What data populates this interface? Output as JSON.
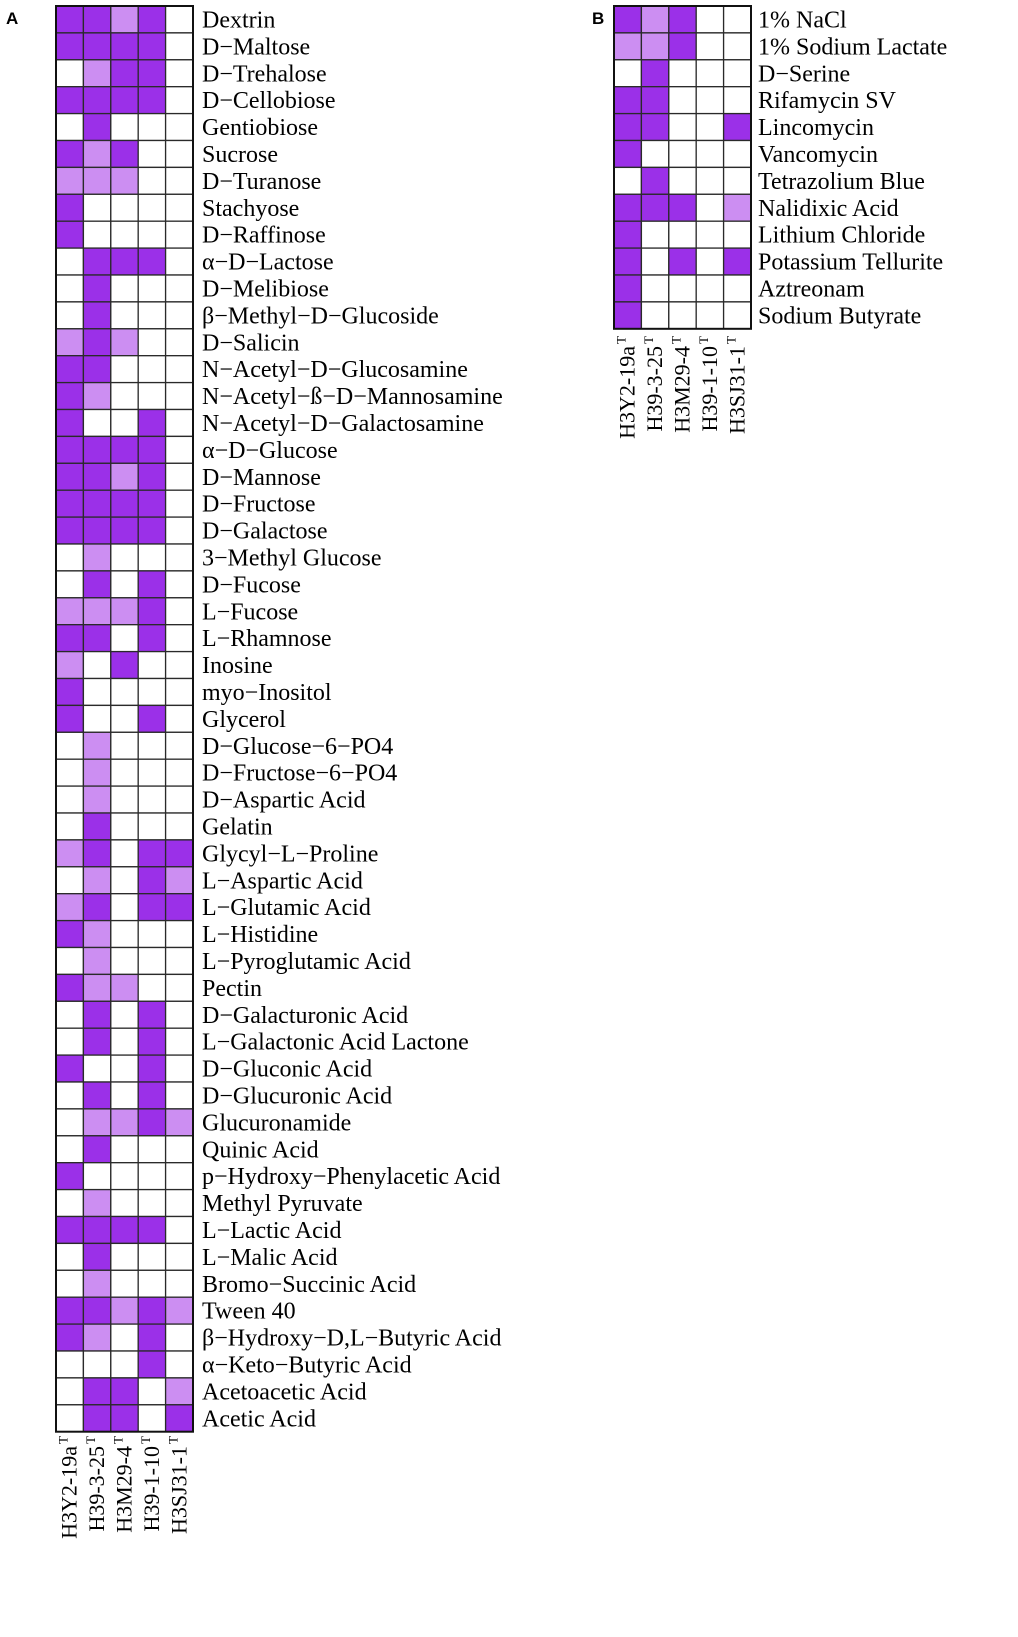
{
  "chart_data": [
    {
      "type": "heatmap",
      "panel_label": "A",
      "colors": {
        "0": "#ffffff",
        "1": "#cc8ef2",
        "2": "#9b30e8"
      },
      "columns": [
        {
          "label": "H3Y2-19a",
          "sup": "T"
        },
        {
          "label": "H39-3-25",
          "sup": "T"
        },
        {
          "label": "H3M29-4",
          "sup": "T"
        },
        {
          "label": "H39-1-10",
          "sup": "T"
        },
        {
          "label": "H3SJ31-1",
          "sup": "T"
        }
      ],
      "rows": [
        "Dextrin",
        "D−Maltose",
        "D−Trehalose",
        "D−Cellobiose",
        "Gentiobiose",
        "Sucrose",
        "D−Turanose",
        "Stachyose",
        "D−Raffinose",
        "α−D−Lactose",
        "D−Melibiose",
        "β−Methyl−D−Glucoside",
        "D−Salicin",
        "N−Acetyl−D−Glucosamine",
        "N−Acetyl−ß−D−Mannosamine",
        "N−Acetyl−D−Galactosamine",
        "α−D−Glucose",
        "D−Mannose",
        "D−Fructose",
        "D−Galactose",
        "3−Methyl Glucose",
        "D−Fucose",
        "L−Fucose",
        "L−Rhamnose",
        "Inosine",
        "myo−Inositol",
        "Glycerol",
        "D−Glucose−6−PO4",
        "D−Fructose−6−PO4",
        "D−Aspartic Acid",
        "Gelatin",
        "Glycyl−L−Proline",
        "L−Aspartic Acid",
        "L−Glutamic Acid",
        "L−Histidine",
        "L−Pyroglutamic Acid",
        "Pectin",
        "D−Galacturonic Acid",
        "L−Galactonic Acid Lactone",
        "D−Gluconic Acid",
        "D−Glucuronic Acid",
        "Glucuronamide",
        "Quinic Acid",
        "p−Hydroxy−Phenylacetic Acid",
        "Methyl Pyruvate",
        "L−Lactic Acid",
        "L−Malic Acid",
        "Bromo−Succinic Acid",
        "Tween 40",
        "β−Hydroxy−D,L−Butyric Acid",
        "α−Keto−Butyric Acid",
        "Acetoacetic Acid",
        "Acetic Acid"
      ],
      "values": [
        [
          2,
          2,
          1,
          2,
          0
        ],
        [
          2,
          2,
          2,
          2,
          0
        ],
        [
          0,
          1,
          2,
          2,
          0
        ],
        [
          2,
          2,
          2,
          2,
          0
        ],
        [
          0,
          2,
          0,
          0,
          0
        ],
        [
          2,
          1,
          2,
          0,
          0
        ],
        [
          1,
          1,
          1,
          0,
          0
        ],
        [
          2,
          0,
          0,
          0,
          0
        ],
        [
          2,
          0,
          0,
          0,
          0
        ],
        [
          0,
          2,
          2,
          2,
          0
        ],
        [
          0,
          2,
          0,
          0,
          0
        ],
        [
          0,
          2,
          0,
          0,
          0
        ],
        [
          1,
          2,
          1,
          0,
          0
        ],
        [
          2,
          2,
          0,
          0,
          0
        ],
        [
          2,
          1,
          0,
          0,
          0
        ],
        [
          2,
          0,
          0,
          2,
          0
        ],
        [
          2,
          2,
          2,
          2,
          0
        ],
        [
          2,
          2,
          1,
          2,
          0
        ],
        [
          2,
          2,
          2,
          2,
          0
        ],
        [
          2,
          2,
          2,
          2,
          0
        ],
        [
          0,
          1,
          0,
          0,
          0
        ],
        [
          0,
          2,
          0,
          2,
          0
        ],
        [
          1,
          1,
          1,
          2,
          0
        ],
        [
          2,
          2,
          0,
          2,
          0
        ],
        [
          1,
          0,
          2,
          0,
          0
        ],
        [
          2,
          0,
          0,
          0,
          0
        ],
        [
          2,
          0,
          0,
          2,
          0
        ],
        [
          0,
          1,
          0,
          0,
          0
        ],
        [
          0,
          1,
          0,
          0,
          0
        ],
        [
          0,
          1,
          0,
          0,
          0
        ],
        [
          0,
          2,
          0,
          0,
          0
        ],
        [
          1,
          2,
          0,
          2,
          2
        ],
        [
          0,
          1,
          0,
          2,
          1
        ],
        [
          1,
          2,
          0,
          2,
          2
        ],
        [
          2,
          1,
          0,
          0,
          0
        ],
        [
          0,
          1,
          0,
          0,
          0
        ],
        [
          2,
          1,
          1,
          0,
          0
        ],
        [
          0,
          2,
          0,
          2,
          0
        ],
        [
          0,
          2,
          0,
          2,
          0
        ],
        [
          2,
          0,
          0,
          2,
          0
        ],
        [
          0,
          2,
          0,
          2,
          0
        ],
        [
          0,
          1,
          1,
          2,
          1
        ],
        [
          0,
          2,
          0,
          0,
          0
        ],
        [
          2,
          0,
          0,
          0,
          0
        ],
        [
          0,
          1,
          0,
          0,
          0
        ],
        [
          2,
          2,
          2,
          2,
          0
        ],
        [
          0,
          2,
          0,
          0,
          0
        ],
        [
          0,
          1,
          0,
          0,
          0
        ],
        [
          2,
          2,
          1,
          2,
          1
        ],
        [
          2,
          1,
          0,
          2,
          0
        ],
        [
          0,
          0,
          0,
          2,
          0
        ],
        [
          0,
          2,
          2,
          0,
          1
        ],
        [
          0,
          2,
          2,
          0,
          2
        ]
      ]
    },
    {
      "type": "heatmap",
      "panel_label": "B",
      "colors": {
        "0": "#ffffff",
        "1": "#cc8ef2",
        "2": "#9b30e8"
      },
      "columns": [
        {
          "label": "H3Y2-19a",
          "sup": "T"
        },
        {
          "label": "H39-3-25",
          "sup": "T"
        },
        {
          "label": "H3M29-4",
          "sup": "T"
        },
        {
          "label": "H39-1-10",
          "sup": "T"
        },
        {
          "label": "H3SJ31-1",
          "sup": "T"
        }
      ],
      "rows": [
        "1% NaCl",
        "1% Sodium Lactate",
        "D−Serine",
        "Rifamycin SV",
        "Lincomycin",
        "Vancomycin",
        "Tetrazolium Blue",
        "Nalidixic Acid",
        "Lithium Chloride",
        "Potassium Tellurite",
        "Aztreonam",
        "Sodium Butyrate"
      ],
      "values": [
        [
          2,
          1,
          2,
          0,
          0
        ],
        [
          1,
          1,
          2,
          0,
          0
        ],
        [
          0,
          2,
          0,
          0,
          0
        ],
        [
          2,
          2,
          0,
          0,
          0
        ],
        [
          2,
          2,
          0,
          0,
          2
        ],
        [
          2,
          0,
          0,
          0,
          0
        ],
        [
          0,
          2,
          0,
          0,
          0
        ],
        [
          2,
          2,
          2,
          0,
          1
        ],
        [
          2,
          0,
          0,
          0,
          0
        ],
        [
          2,
          0,
          2,
          0,
          2
        ],
        [
          2,
          0,
          0,
          0,
          0
        ],
        [
          2,
          0,
          0,
          0,
          0
        ]
      ]
    }
  ]
}
